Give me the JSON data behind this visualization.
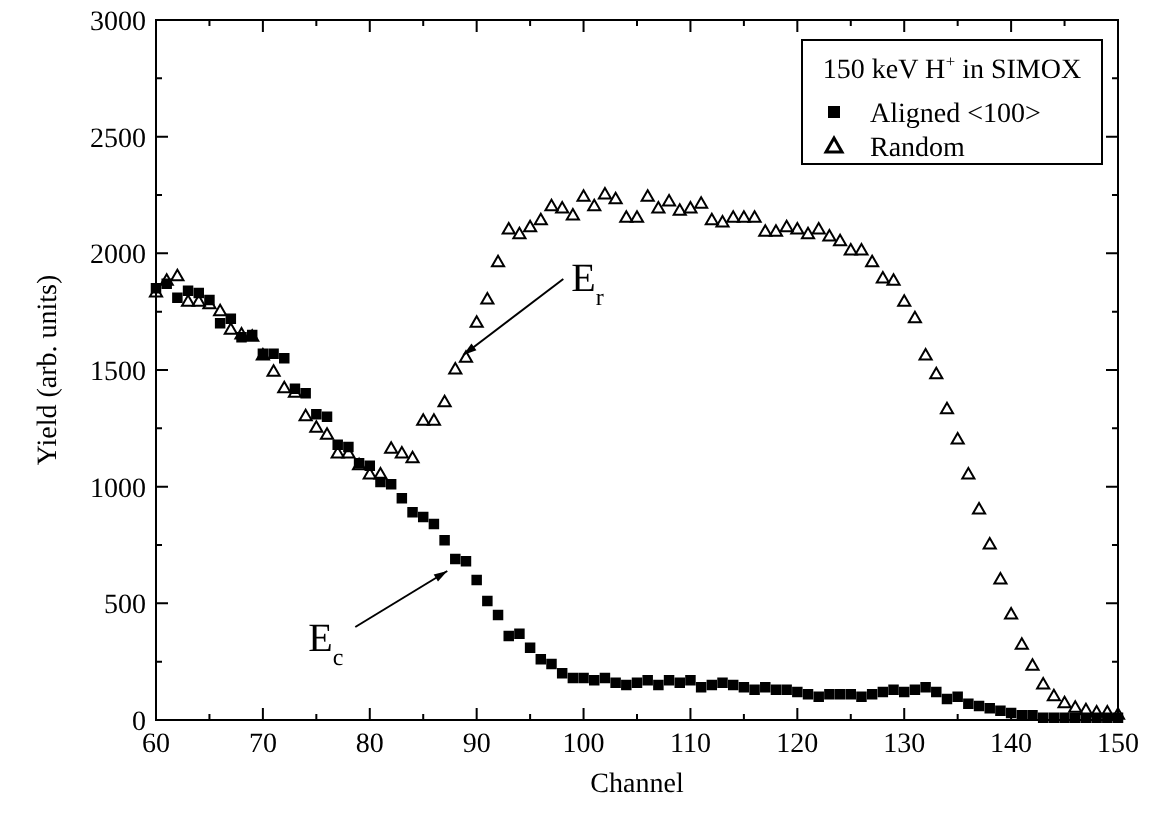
{
  "chart_data": {
    "type": "scatter",
    "xlabel": "Channel",
    "ylabel": "Yield (arb. units)",
    "legend_title": "150 keV H$^{+}$ in SIMOX",
    "legend": "top right",
    "grid": false,
    "xlim": [
      60,
      150
    ],
    "xticks": [
      60,
      {
        "value": 65,
        "label": null
      },
      70,
      {
        "value": 75,
        "label": null
      },
      80,
      {
        "value": 85,
        "label": null
      },
      90,
      {
        "value": 95,
        "label": null
      },
      100,
      {
        "value": 105,
        "label": null
      },
      110,
      {
        "value": 115,
        "label": null
      },
      120,
      {
        "value": 125,
        "label": null
      },
      130,
      {
        "value": 135,
        "label": null
      },
      140,
      {
        "value": 145,
        "label": null
      },
      150
    ],
    "ylim": [
      0,
      3000
    ],
    "yticks": [
      0,
      {
        "value": 250,
        "label": null
      },
      500,
      {
        "value": 750,
        "label": null
      },
      1000,
      {
        "value": 1250,
        "label": null
      },
      1500,
      {
        "value": 1750,
        "label": null
      },
      2000,
      {
        "value": 2250,
        "label": null
      },
      2500,
      {
        "value": 2750,
        "label": null
      },
      3000
    ],
    "x": [
      60,
      61,
      62,
      63,
      64,
      65,
      66,
      67,
      68,
      69,
      70,
      71,
      72,
      73,
      74,
      75,
      76,
      77,
      78,
      79,
      80,
      81,
      82,
      83,
      84,
      85,
      86,
      87,
      88,
      89,
      90,
      91,
      92,
      93,
      94,
      95,
      96,
      97,
      98,
      99,
      100,
      101,
      102,
      103,
      104,
      105,
      106,
      107,
      108,
      109,
      110,
      111,
      112,
      113,
      114,
      115,
      116,
      117,
      118,
      119,
      120,
      121,
      122,
      123,
      124,
      125,
      126,
      127,
      128,
      129,
      130,
      131,
      132,
      133,
      134,
      135,
      136,
      137,
      138,
      139,
      140,
      141,
      142,
      143,
      144,
      145,
      146,
      147,
      148,
      149,
      150
    ],
    "series": [
      {
        "name": "Aligned <100>",
        "color": "#000000",
        "marker": "square",
        "values": [
          1850,
          1870,
          1810,
          1840,
          1830,
          1800,
          1700,
          1720,
          1640,
          1650,
          1570,
          1570,
          1550,
          1420,
          1400,
          1310,
          1300,
          1180,
          1170,
          1100,
          1090,
          1020,
          1010,
          950,
          890,
          870,
          840,
          770,
          690,
          680,
          600,
          510,
          450,
          360,
          370,
          310,
          260,
          240,
          200,
          180,
          180,
          170,
          180,
          160,
          150,
          160,
          170,
          150,
          170,
          160,
          170,
          140,
          150,
          160,
          150,
          140,
          130,
          140,
          130,
          130,
          120,
          110,
          100,
          110,
          110,
          110,
          100,
          110,
          120,
          130,
          120,
          130,
          140,
          120,
          90,
          100,
          70,
          60,
          50,
          40,
          30,
          20,
          20,
          10,
          10,
          10,
          10,
          10,
          10,
          10,
          10
        ]
      },
      {
        "name": "Random",
        "color": "#000000",
        "marker": "triangle",
        "values": [
          1830,
          1880,
          1900,
          1790,
          1790,
          1780,
          1750,
          1670,
          1650,
          1640,
          1560,
          1490,
          1420,
          1400,
          1300,
          1250,
          1220,
          1140,
          1140,
          1090,
          1050,
          1050,
          1160,
          1140,
          1120,
          1280,
          1280,
          1360,
          1500,
          1550,
          1700,
          1800,
          1960,
          2100,
          2080,
          2110,
          2140,
          2200,
          2190,
          2160,
          2240,
          2200,
          2250,
          2230,
          2150,
          2150,
          2240,
          2190,
          2220,
          2180,
          2190,
          2210,
          2140,
          2130,
          2150,
          2150,
          2150,
          2090,
          2090,
          2110,
          2100,
          2080,
          2100,
          2070,
          2050,
          2010,
          2010,
          1960,
          1890,
          1880,
          1790,
          1720,
          1560,
          1480,
          1330,
          1200,
          1050,
          900,
          750,
          600,
          450,
          320,
          230,
          150,
          100,
          70,
          50,
          40,
          30,
          30,
          20
        ]
      }
    ],
    "annotations": [
      {
        "text": "E$_{r}$",
        "x": 88,
        "y": 1530
      },
      {
        "text": "E$_{c}$",
        "x": 88,
        "y": 690
      }
    ]
  }
}
